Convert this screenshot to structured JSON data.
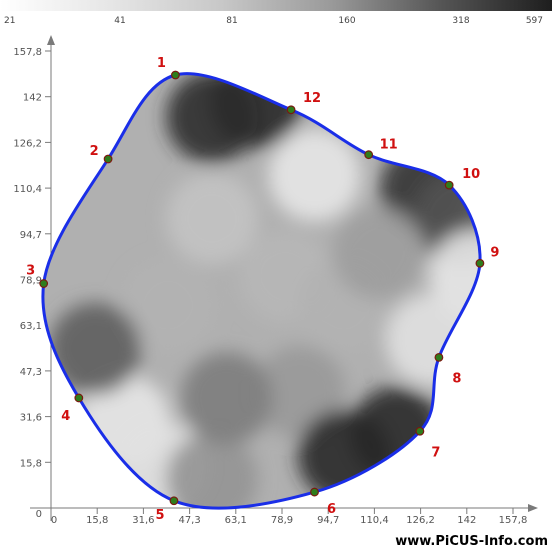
{
  "chart_data": {
    "type": "heatmap",
    "colors": {
      "outline": "#1a2ee8",
      "sensor_fill": "#2e7d1c",
      "sensor_stroke": "#7a1a10",
      "sensor_label": "#d01010",
      "axis": "#7a7a7a",
      "background": "#ffffff",
      "dark": "#1e1e1e",
      "light": "#f2f2f2"
    },
    "scale": {
      "labels": [
        "21",
        "41",
        "81",
        "160",
        "318",
        "597"
      ],
      "gradient": [
        "#ffffff",
        "#e6e6e6",
        "#c8c8c8",
        "#9a9a9a",
        "#555555",
        "#1e1e1e"
      ]
    },
    "x_ticks": [
      "0",
      "15,8",
      "31,6",
      "47,3",
      "63,1",
      "78,9",
      "94,7",
      "110,4",
      "126,2",
      "142",
      "157,8"
    ],
    "y_ticks": [
      "0",
      "15,8",
      "31,6",
      "47,3",
      "63,1",
      "78,9",
      "94,7",
      "110,4",
      "126,2",
      "142",
      "157,8"
    ],
    "xlim": [
      0,
      157.8
    ],
    "ylim": [
      0,
      157.8
    ],
    "sensors": [
      {
        "label": "1",
        "x": 42.5,
        "y": 149.5
      },
      {
        "label": "2",
        "x": 19.5,
        "y": 120.5
      },
      {
        "label": "3",
        "x": -2.5,
        "y": 77.5
      },
      {
        "label": "4",
        "x": 9.5,
        "y": 38.0
      },
      {
        "label": "5",
        "x": 42.0,
        "y": 2.5
      },
      {
        "label": "6",
        "x": 90.0,
        "y": 5.5
      },
      {
        "label": "7",
        "x": 126.0,
        "y": 26.5
      },
      {
        "label": "8",
        "x": 132.5,
        "y": 52.0
      },
      {
        "label": "9",
        "x": 146.5,
        "y": 84.5
      },
      {
        "label": "10",
        "x": 136.0,
        "y": 111.5
      },
      {
        "label": "11",
        "x": 108.5,
        "y": 122.0
      },
      {
        "label": "12",
        "x": 82.0,
        "y": 137.5
      }
    ],
    "shading": [
      {
        "x": 80,
        "y": 80,
        "level": 0.28
      },
      {
        "x": 55,
        "y": 100,
        "level": 0.22
      },
      {
        "x": 40,
        "y": 70,
        "level": 0.3
      },
      {
        "x": 100,
        "y": 70,
        "level": 0.3
      },
      {
        "x": 85,
        "y": 40,
        "level": 0.42
      },
      {
        "x": 55,
        "y": 135,
        "level": 0.92
      },
      {
        "x": 70,
        "y": 140,
        "level": 0.95
      },
      {
        "x": 90,
        "y": 115,
        "level": 0.05
      },
      {
        "x": 128,
        "y": 110,
        "level": 0.9
      },
      {
        "x": 140,
        "y": 100,
        "level": 0.75
      },
      {
        "x": 145,
        "y": 80,
        "level": 0.05
      },
      {
        "x": 130,
        "y": 58,
        "level": 0.08
      },
      {
        "x": 100,
        "y": 18,
        "level": 0.95
      },
      {
        "x": 118,
        "y": 26,
        "level": 0.95
      },
      {
        "x": 25,
        "y": 30,
        "level": 0.05
      },
      {
        "x": 38,
        "y": 14,
        "level": 0.08
      },
      {
        "x": 15,
        "y": 55,
        "level": 0.7
      },
      {
        "x": 55,
        "y": 10,
        "level": 0.45
      },
      {
        "x": 60,
        "y": 38,
        "level": 0.55
      },
      {
        "x": 112,
        "y": 88,
        "level": 0.4
      }
    ]
  },
  "watermark": "www.PiCUS-Info.com"
}
